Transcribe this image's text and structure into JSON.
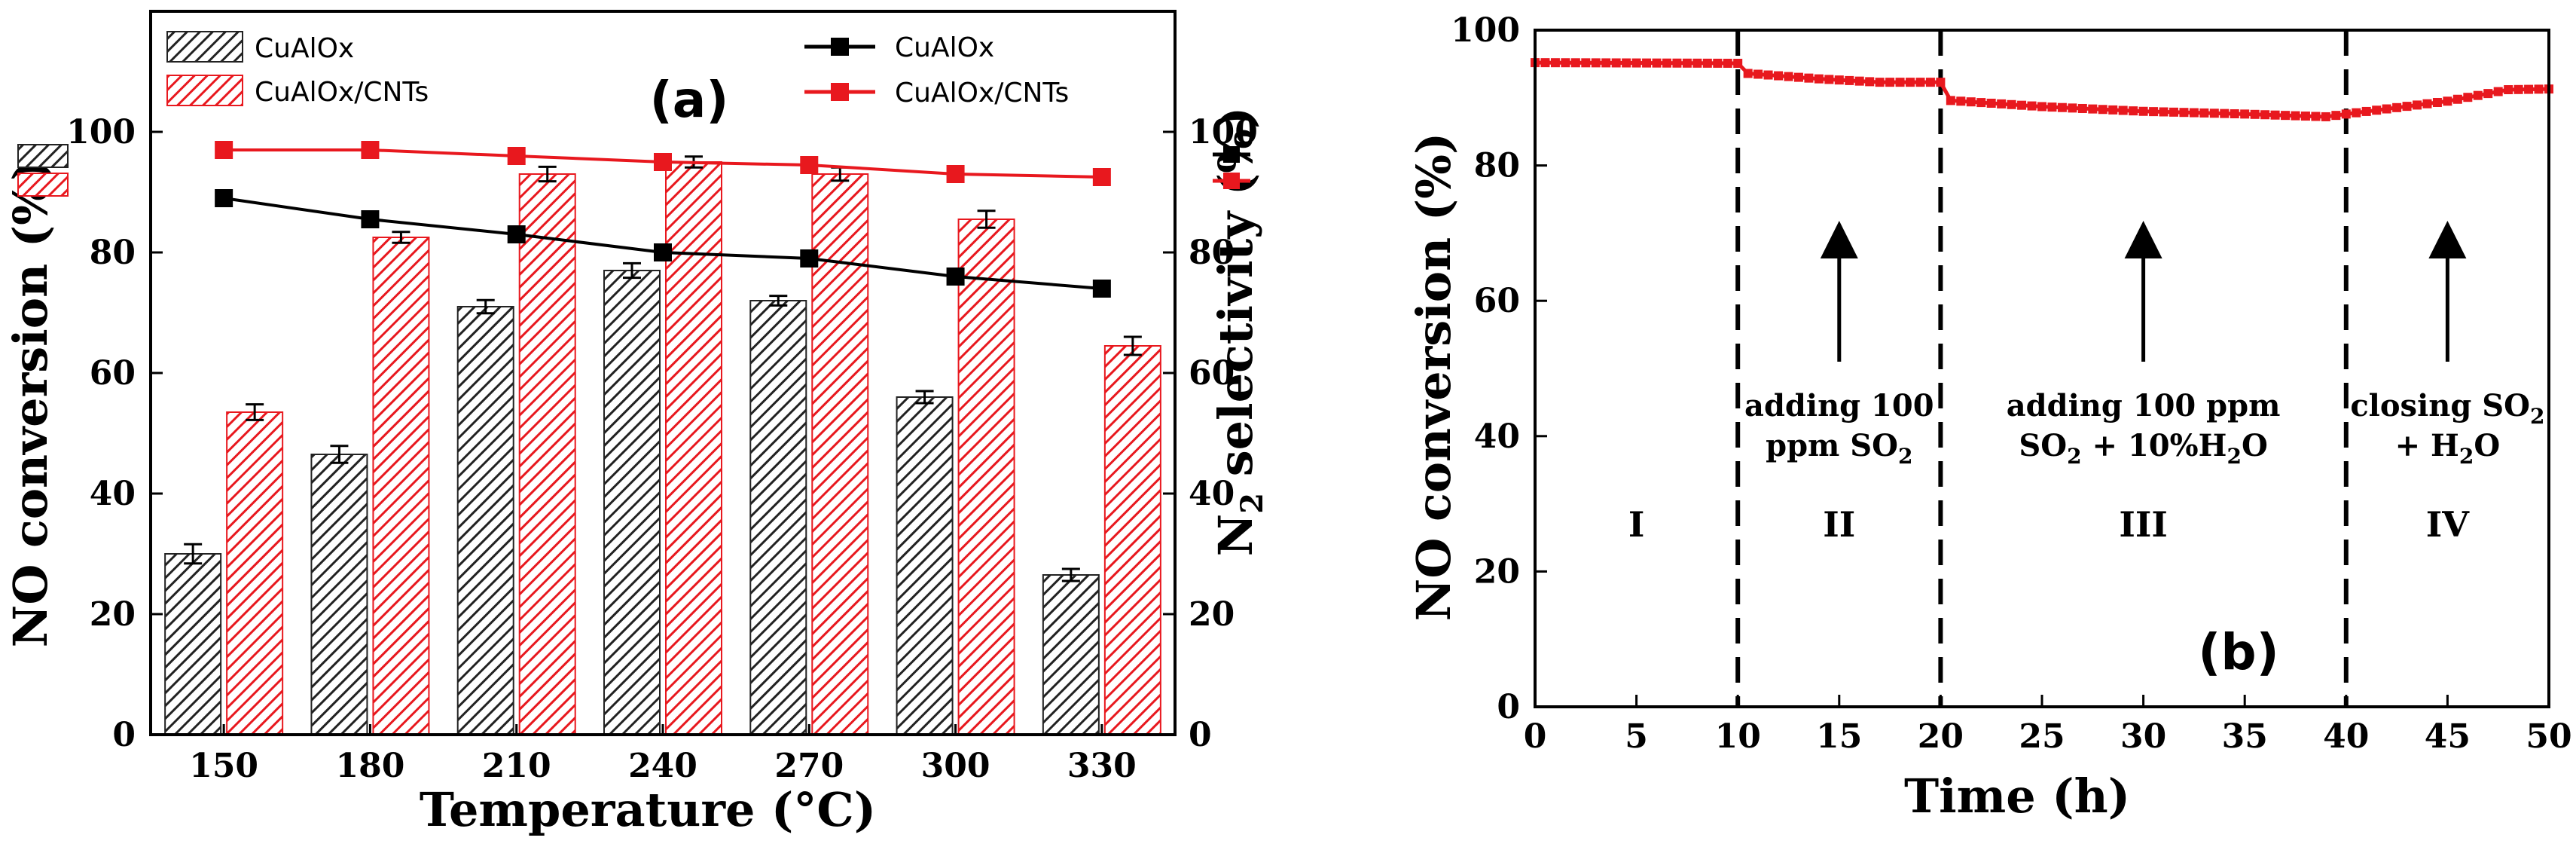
{
  "chart_data": [
    {
      "type": "bar",
      "panel_label": "(a)",
      "xlabel": "Temperature (°C)",
      "ylabel": "NO conversion (%)",
      "y2label_main": "N",
      "y2label_sub": "2",
      "y2label_rest": " selectivity (%)",
      "categories": [
        "150",
        "180",
        "210",
        "240",
        "270",
        "300",
        "330"
      ],
      "ylim": [
        0,
        120
      ],
      "y2lim": [
        0,
        120
      ],
      "yticks": [
        0,
        20,
        40,
        60,
        80,
        100
      ],
      "y2ticks": [
        0,
        20,
        40,
        60,
        80,
        100
      ],
      "series": [
        {
          "name": "CuAlOx",
          "kind": "bar",
          "color": "#222222",
          "values": [
            30,
            46.5,
            71,
            77,
            72,
            56,
            26.5
          ],
          "errors": [
            1.6,
            1.4,
            1.1,
            1.2,
            0.8,
            1.0,
            1.0
          ]
        },
        {
          "name": "CuAlOx/CNTs",
          "kind": "bar",
          "color": "#e8181e",
          "values": [
            53.5,
            82.5,
            93,
            95,
            93,
            85.5,
            64.5
          ],
          "errors": [
            1.3,
            0.9,
            1.2,
            0.9,
            1.1,
            1.4,
            1.5
          ]
        }
      ],
      "line_series": [
        {
          "name": "CuAlOx",
          "kind": "line",
          "axis": "right",
          "color": "#000000",
          "values": [
            89,
            85.5,
            83,
            80,
            79,
            76,
            74
          ]
        },
        {
          "name": "CuAlOx/CNTs",
          "kind": "line",
          "axis": "right",
          "color": "#e8181e",
          "values": [
            97,
            97,
            96,
            95,
            94.5,
            93,
            92.5
          ]
        }
      ],
      "legend_bars": [
        "CuAlOx",
        "CuAlOx/CNTs"
      ],
      "legend_lines": [
        "CuAlOx",
        "CuAlOx/CNTs"
      ]
    },
    {
      "type": "line",
      "panel_label": "(b)",
      "xlabel": "Time (h)",
      "ylabel": "NO conversion (%)",
      "xlim": [
        0,
        50
      ],
      "ylim": [
        0,
        100
      ],
      "xticks": [
        0,
        5,
        10,
        15,
        20,
        25,
        30,
        35,
        40,
        45,
        50
      ],
      "yticks": [
        0,
        20,
        40,
        60,
        80,
        100
      ],
      "series": [
        {
          "name": "NO conversion",
          "color": "#e8181e",
          "points": [
            [
              0,
              95.2
            ],
            [
              10,
              95.1
            ],
            [
              10.5,
              93.6
            ],
            [
              14,
              92.8
            ],
            [
              17,
              92.3
            ],
            [
              20,
              92.3
            ],
            [
              20.5,
              89.6
            ],
            [
              25,
              88.7
            ],
            [
              30,
              88
            ],
            [
              35,
              87.6
            ],
            [
              39,
              87.2
            ],
            [
              40,
              87.6
            ],
            [
              45,
              89.5
            ],
            [
              48,
              91.2
            ],
            [
              50,
              91.3
            ]
          ]
        }
      ],
      "dividers": [
        10,
        20,
        40
      ],
      "regions": [
        {
          "label": "I",
          "x": 5
        },
        {
          "label": "II",
          "x": 15
        },
        {
          "label": "III",
          "x": 30
        },
        {
          "label": "IV",
          "x": 45
        }
      ],
      "annotations": [
        {
          "id": "a1",
          "x": 15,
          "line1": "adding 100",
          "line2_pre": "ppm SO",
          "line2_sub": "2",
          "line2_post": ""
        },
        {
          "id": "a2",
          "x": 30,
          "line1": "adding 100 ppm",
          "line2_pre": "SO",
          "line2_sub": "2",
          "line2_post": " + 10%H",
          "line2_sub2": "2",
          "line2_post2": "O"
        },
        {
          "id": "a3",
          "x": 45,
          "line1_pre": "closing SO",
          "line1_sub": "2",
          "line2_pre": "+ H",
          "line2_sub": "2",
          "line2_post": "O"
        }
      ]
    }
  ]
}
